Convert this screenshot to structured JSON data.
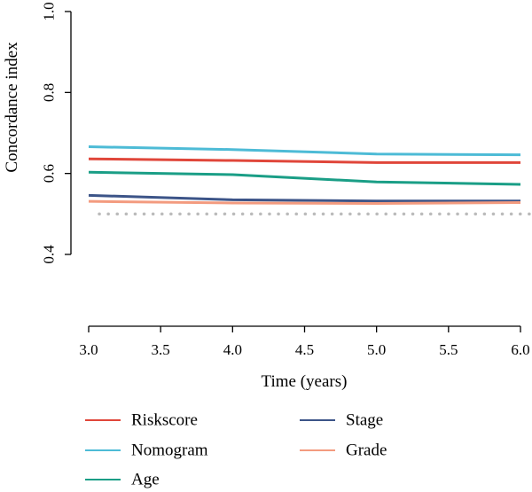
{
  "chart_data": {
    "type": "line",
    "title": "",
    "xlabel": "Time (years)",
    "ylabel": "Concordance index",
    "xlim": [
      3.0,
      6.0
    ],
    "ylim": [
      0.4,
      1.0
    ],
    "xticks": [
      3.0,
      3.5,
      4.0,
      4.5,
      5.0,
      5.5,
      6.0
    ],
    "xtick_labels": [
      "3.0",
      "3.5",
      "4.0",
      "4.5",
      "5.0",
      "5.5",
      "6.0"
    ],
    "yticks": [
      0.4,
      0.6,
      0.8,
      1.0
    ],
    "ytick_labels": [
      "0.4",
      "0.6",
      "0.8",
      "1.0"
    ],
    "grid": false,
    "legend_position": "bottom",
    "reference_line": {
      "y": 0.5,
      "style": "dotted",
      "color": "#bbbbbb"
    },
    "series": [
      {
        "name": "Riskscore",
        "color": "#e0463a",
        "x": [
          3,
          4,
          5,
          6
        ],
        "y": [
          0.636,
          0.632,
          0.627,
          0.627
        ]
      },
      {
        "name": "Nomogram",
        "color": "#4dbbd6",
        "x": [
          3,
          4,
          5,
          6
        ],
        "y": [
          0.666,
          0.659,
          0.648,
          0.646
        ]
      },
      {
        "name": "Age",
        "color": "#1a9e86",
        "x": [
          3,
          4,
          5,
          6
        ],
        "y": [
          0.603,
          0.597,
          0.579,
          0.573
        ]
      },
      {
        "name": "Stage",
        "color": "#3c5488",
        "x": [
          3,
          4,
          5,
          6
        ],
        "y": [
          0.546,
          0.535,
          0.532,
          0.532
        ]
      },
      {
        "name": "Grade",
        "color": "#f39b7f",
        "x": [
          3,
          4,
          5,
          6
        ],
        "y": [
          0.531,
          0.527,
          0.526,
          0.528
        ]
      }
    ]
  }
}
